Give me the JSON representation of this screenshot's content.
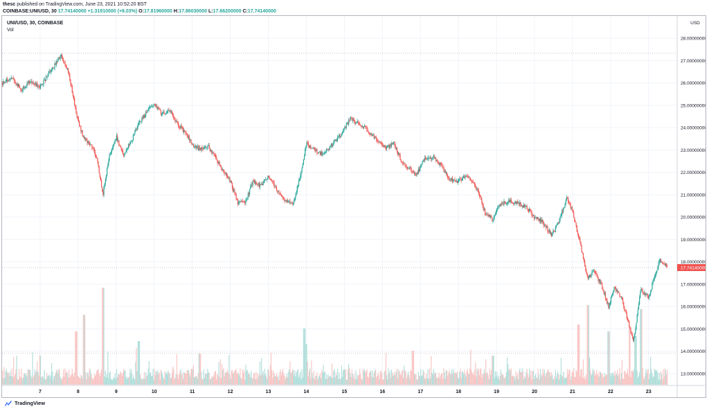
{
  "header": {
    "user": "thesc",
    "publish_text": "published on TradingView.com, June 23, 2021 10:52:20 BST",
    "symbol_interval": "COINBASE:UNIUSD, 30",
    "last": "17.74140000",
    "change": "+1.31910000 (+8.03%)",
    "open_label": "O:",
    "open": "17.81960000",
    "high_label": "H:",
    "high": "17.86030000",
    "low_label": "L:",
    "low": "17.66200000",
    "close_label": "C:",
    "close": "17.74140000"
  },
  "legend": {
    "symbol": "UNI/USD, 30, COINBASE",
    "volume": "Vol"
  },
  "footer": {
    "brand": "TradingView"
  },
  "colors": {
    "up": "#26a69a",
    "down": "#ef5350",
    "up_volume": "#b2dfdb",
    "down_volume": "#f8c6c5",
    "grid": "#f0f3fa",
    "price_label_bg": "#ef5350"
  },
  "chart_data": {
    "type": "candlestick",
    "symbol": "UNI/USD",
    "interval": "30",
    "exchange": "COINBASE",
    "currency": "USD",
    "grid": true,
    "ylim": [
      12.5,
      29
    ],
    "y_ticks": [
      "13.00000000",
      "14.00000000",
      "15.00000000",
      "16.00000000",
      "17.00000000",
      "18.00000000",
      "19.00000000",
      "20.00000000",
      "21.00000000",
      "22.00000000",
      "23.00000000",
      "24.00000000",
      "25.00000000",
      "26.00000000",
      "27.00000000",
      "28.00000000"
    ],
    "y_tick_values": [
      13,
      14,
      15,
      16,
      17,
      18,
      19,
      20,
      21,
      22,
      23,
      24,
      25,
      26,
      27,
      28
    ],
    "x_range": [
      6.0,
      23.75
    ],
    "x_ticks": [
      "7",
      "8",
      "9",
      "10",
      "11",
      "12",
      "13",
      "14",
      "15",
      "16",
      "17",
      "18",
      "19",
      "20",
      "21",
      "22",
      "23"
    ],
    "x_tick_values": [
      7,
      8,
      9,
      10,
      11,
      12,
      13,
      14,
      15,
      16,
      17,
      18,
      19,
      20,
      21,
      22,
      23
    ],
    "last_price_label": "17.74140000",
    "last_price": 17.7414,
    "reference_lines": [
      27.33,
      13.92
    ],
    "price_path": [
      [
        6.0,
        26.0
      ],
      [
        6.25,
        26.25
      ],
      [
        6.5,
        25.7
      ],
      [
        6.75,
        26.1
      ],
      [
        7.0,
        25.8
      ],
      [
        7.3,
        26.6
      ],
      [
        7.55,
        27.2
      ],
      [
        7.75,
        26.5
      ],
      [
        7.95,
        24.6
      ],
      [
        8.15,
        23.5
      ],
      [
        8.35,
        23.2
      ],
      [
        8.5,
        22.6
      ],
      [
        8.65,
        21.0
      ],
      [
        8.8,
        22.6
      ],
      [
        9.0,
        23.6
      ],
      [
        9.2,
        22.8
      ],
      [
        9.4,
        23.4
      ],
      [
        9.6,
        24.2
      ],
      [
        9.8,
        24.7
      ],
      [
        10.0,
        25.1
      ],
      [
        10.2,
        24.6
      ],
      [
        10.4,
        24.8
      ],
      [
        10.6,
        24.2
      ],
      [
        10.8,
        23.8
      ],
      [
        11.0,
        23.3
      ],
      [
        11.2,
        23.0
      ],
      [
        11.4,
        23.2
      ],
      [
        11.6,
        22.7
      ],
      [
        11.8,
        22.1
      ],
      [
        12.0,
        21.6
      ],
      [
        12.2,
        20.6
      ],
      [
        12.4,
        20.7
      ],
      [
        12.6,
        21.6
      ],
      [
        12.8,
        21.4
      ],
      [
        13.0,
        21.8
      ],
      [
        13.2,
        21.3
      ],
      [
        13.4,
        20.8
      ],
      [
        13.65,
        20.6
      ],
      [
        13.85,
        21.9
      ],
      [
        14.0,
        23.3
      ],
      [
        14.2,
        23.0
      ],
      [
        14.45,
        22.8
      ],
      [
        14.7,
        23.3
      ],
      [
        14.95,
        23.8
      ],
      [
        15.15,
        24.4
      ],
      [
        15.35,
        24.2
      ],
      [
        15.55,
        24.0
      ],
      [
        15.75,
        23.6
      ],
      [
        15.95,
        23.3
      ],
      [
        16.1,
        23.1
      ],
      [
        16.3,
        23.3
      ],
      [
        16.5,
        22.5
      ],
      [
        16.7,
        22.2
      ],
      [
        16.9,
        21.9
      ],
      [
        17.1,
        22.6
      ],
      [
        17.35,
        22.7
      ],
      [
        17.55,
        22.3
      ],
      [
        17.75,
        21.7
      ],
      [
        18.0,
        21.6
      ],
      [
        18.2,
        21.9
      ],
      [
        18.45,
        21.4
      ],
      [
        18.7,
        20.2
      ],
      [
        18.9,
        19.9
      ],
      [
        19.1,
        20.6
      ],
      [
        19.35,
        20.7
      ],
      [
        19.6,
        20.6
      ],
      [
        19.8,
        20.4
      ],
      [
        20.0,
        20.0
      ],
      [
        20.2,
        19.8
      ],
      [
        20.45,
        19.2
      ],
      [
        20.65,
        19.8
      ],
      [
        20.85,
        20.9
      ],
      [
        21.0,
        20.2
      ],
      [
        21.2,
        18.8
      ],
      [
        21.4,
        17.2
      ],
      [
        21.55,
        17.6
      ],
      [
        21.75,
        17.0
      ],
      [
        21.95,
        16.0
      ],
      [
        22.1,
        16.9
      ],
      [
        22.3,
        16.3
      ],
      [
        22.5,
        15.1
      ],
      [
        22.6,
        14.4
      ],
      [
        22.8,
        16.8
      ],
      [
        23.0,
        16.4
      ],
      [
        23.15,
        17.3
      ],
      [
        23.3,
        18.1
      ],
      [
        23.5,
        17.74
      ]
    ],
    "volume_spikes": [
      [
        7.0,
        0.3
      ],
      [
        7.95,
        0.55
      ],
      [
        8.15,
        0.72
      ],
      [
        8.65,
        1.0
      ],
      [
        9.6,
        0.45
      ],
      [
        11.2,
        0.32
      ],
      [
        13.95,
        0.58
      ],
      [
        14.0,
        0.42
      ],
      [
        16.8,
        0.35
      ],
      [
        18.9,
        0.3
      ],
      [
        21.15,
        0.62
      ],
      [
        21.4,
        0.82
      ],
      [
        21.95,
        0.55
      ],
      [
        22.5,
        0.6
      ],
      [
        22.8,
        0.78
      ],
      [
        22.65,
        0.5
      ]
    ]
  }
}
